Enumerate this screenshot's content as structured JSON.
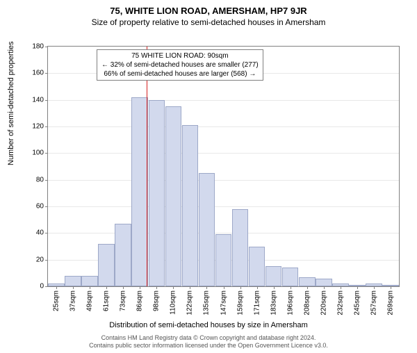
{
  "title_main": "75, WHITE LION ROAD, AMERSHAM, HP7 9JR",
  "title_sub": "Size of property relative to semi-detached houses in Amersham",
  "y_axis_label": "Number of semi-detached properties",
  "x_axis_label": "Distribution of semi-detached houses by size in Amersham",
  "chart": {
    "type": "histogram",
    "ylim": [
      0,
      180
    ],
    "ytick_step": 20,
    "yticks": [
      0,
      20,
      40,
      60,
      80,
      100,
      120,
      140,
      160,
      180
    ],
    "x_labels": [
      "25sqm",
      "37sqm",
      "49sqm",
      "61sqm",
      "73sqm",
      "86sqm",
      "98sqm",
      "110sqm",
      "122sqm",
      "135sqm",
      "147sqm",
      "159sqm",
      "171sqm",
      "183sqm",
      "196sqm",
      "208sqm",
      "220sqm",
      "232sqm",
      "245sqm",
      "257sqm",
      "269sqm"
    ],
    "values": [
      2,
      8,
      8,
      32,
      47,
      142,
      140,
      135,
      121,
      85,
      39,
      58,
      30,
      15,
      14,
      7,
      6,
      2,
      0,
      2,
      1
    ],
    "bar_fill": "#d2d9ed",
    "bar_border": "#9da8c8",
    "background_color": "#ffffff",
    "grid_color": "#e8e8e8",
    "axis_color": "#808080",
    "marker": {
      "color": "#d62020",
      "at_index": 5.4
    }
  },
  "annotation": {
    "line1": "75 WHITE LION ROAD: 90sqm",
    "line2": "← 32% of semi-detached houses are smaller (277)",
    "line3": "66% of semi-detached houses are larger (568) →"
  },
  "footer": {
    "line1": "Contains HM Land Registry data © Crown copyright and database right 2024.",
    "line2": "Contains public sector information licensed under the Open Government Licence v3.0."
  }
}
